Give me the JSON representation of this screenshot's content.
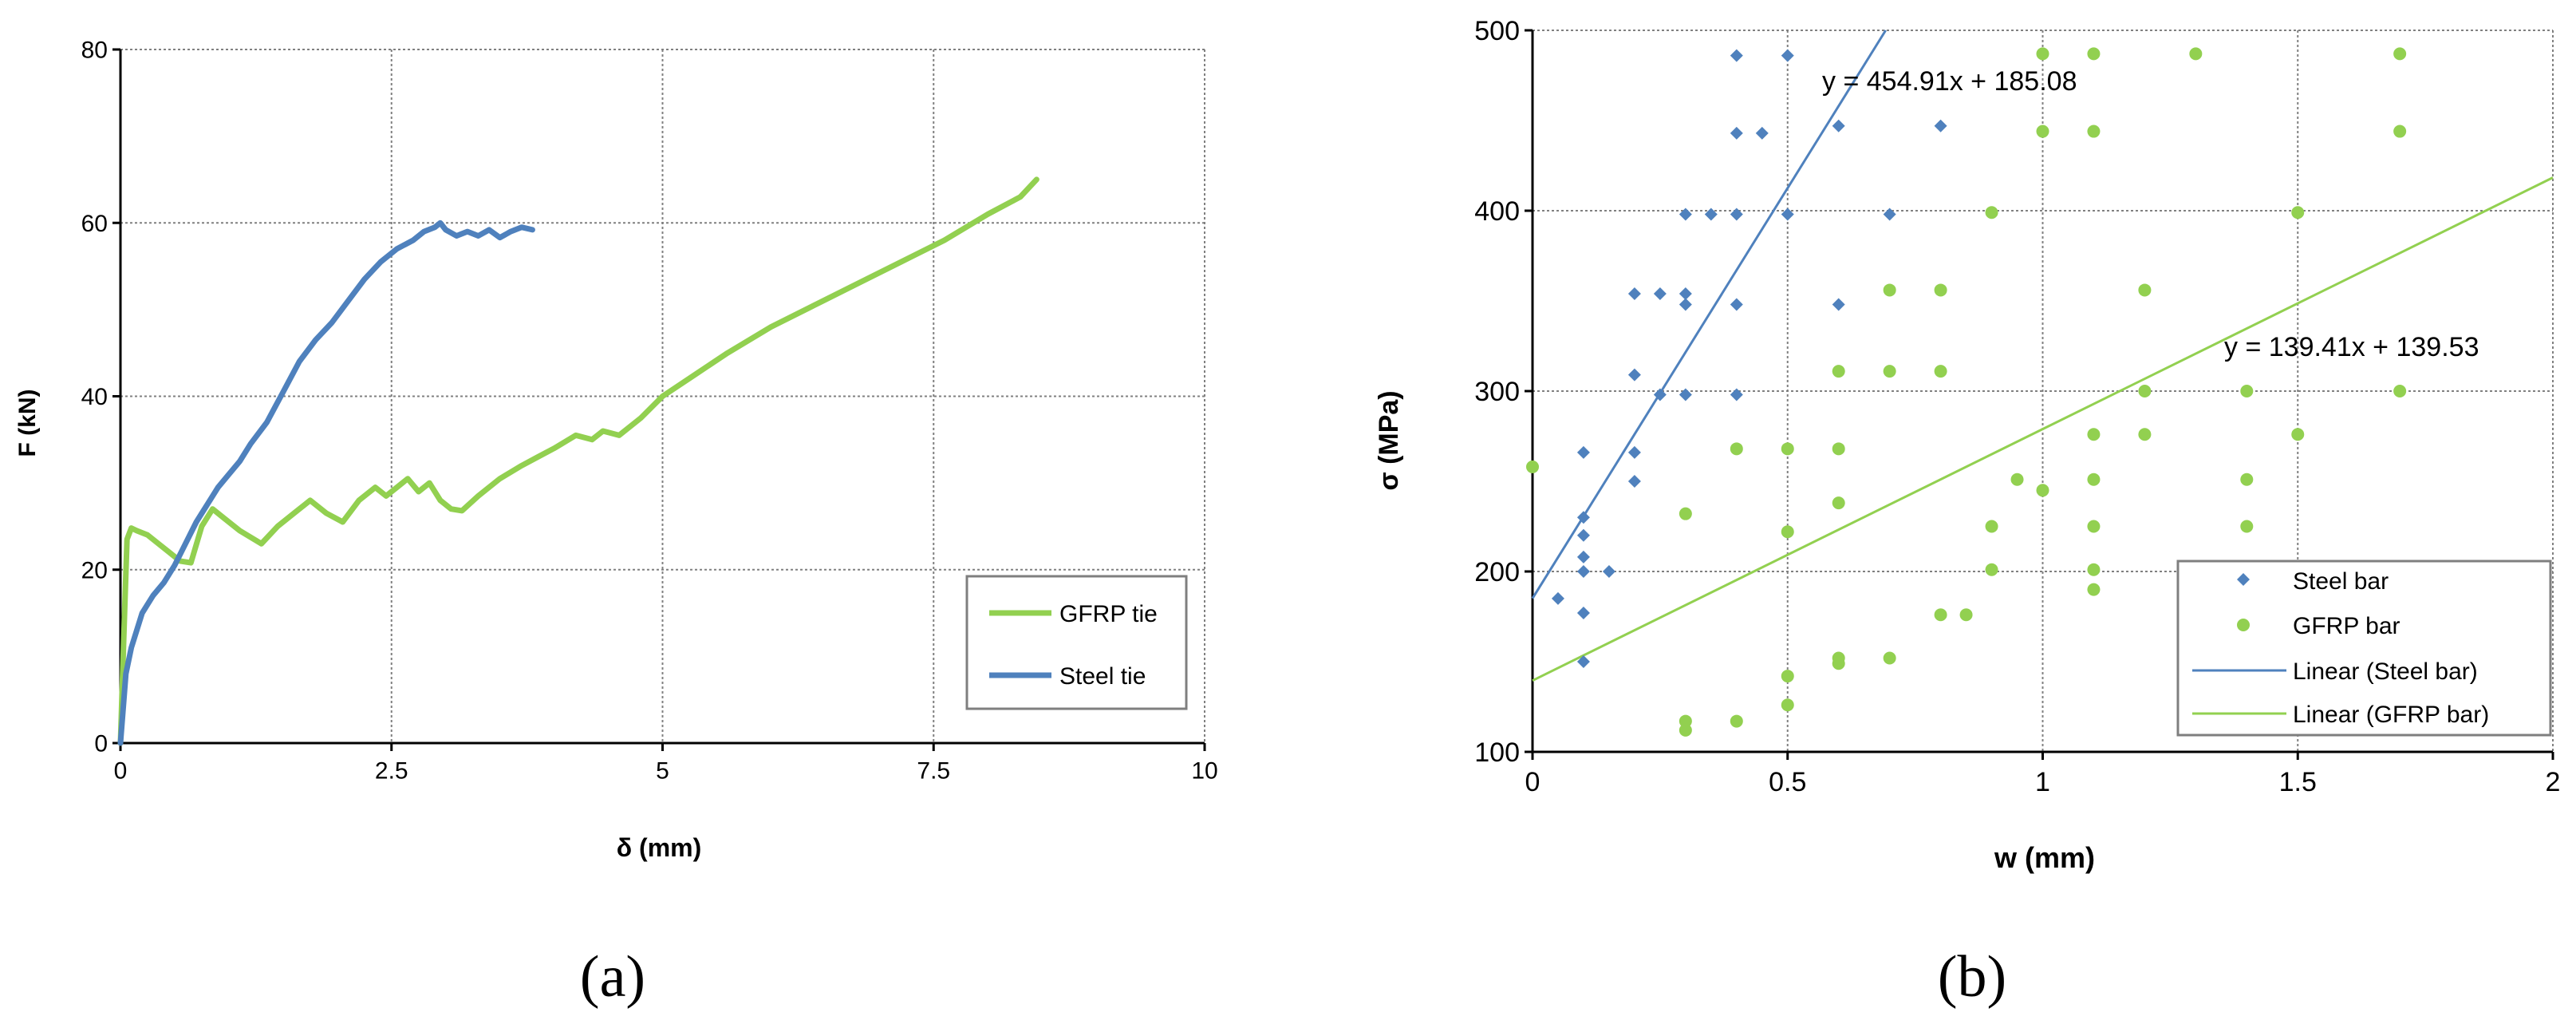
{
  "colors": {
    "steel": "#4f81bd",
    "gfrp": "#92d050",
    "grid": "#808080",
    "axis": "#000000"
  },
  "chart_data": [
    {
      "type": "line",
      "panel": "a",
      "caption": "(a)",
      "xlabel": "δ (mm)",
      "ylabel": "F (kN)",
      "xlim": [
        0,
        10
      ],
      "ylim": [
        0,
        80
      ],
      "xticks": [
        "0",
        "2.5",
        "5",
        "7.5",
        "10"
      ],
      "yticks": [
        "0",
        "20",
        "40",
        "60",
        "80"
      ],
      "grid": true,
      "legend_position": "right",
      "series": [
        {
          "name": "GFRP tie",
          "color": "#92d050",
          "x": [
            0,
            0.03,
            0.06,
            0.1,
            0.15,
            0.25,
            0.35,
            0.45,
            0.55,
            0.65,
            0.75,
            0.85,
            0.95,
            1.1,
            1.3,
            1.45,
            1.6,
            1.75,
            1.9,
            2.05,
            2.2,
            2.35,
            2.45,
            2.55,
            2.65,
            2.75,
            2.85,
            2.95,
            3.05,
            3.15,
            3.3,
            3.5,
            3.7,
            3.85,
            4.0,
            4.2,
            4.35,
            4.45,
            4.6,
            4.8,
            5.0,
            5.3,
            5.6,
            6.0,
            6.4,
            6.8,
            7.2,
            7.6,
            8.0,
            8.3,
            8.45
          ],
          "y": [
            0,
            12,
            23.5,
            24.8,
            24.5,
            24,
            23,
            22,
            21,
            20.8,
            25,
            27,
            26,
            24.5,
            23,
            25,
            26.5,
            28,
            26.5,
            25.5,
            28,
            29.5,
            28.5,
            29.5,
            30.5,
            29,
            30,
            28,
            27,
            26.8,
            28.5,
            30.5,
            32,
            33,
            34,
            35.5,
            35,
            36,
            35.5,
            37.5,
            40,
            42.5,
            45,
            48,
            50.5,
            53,
            55.5,
            58,
            61,
            63,
            65
          ]
        },
        {
          "name": "Steel tie",
          "color": "#4f81bd",
          "x": [
            0,
            0.05,
            0.1,
            0.15,
            0.2,
            0.3,
            0.4,
            0.5,
            0.6,
            0.7,
            0.8,
            0.9,
            1.0,
            1.1,
            1.2,
            1.35,
            1.5,
            1.65,
            1.8,
            1.95,
            2.1,
            2.25,
            2.4,
            2.55,
            2.7,
            2.8,
            2.9,
            2.95,
            3.0,
            3.1,
            3.2,
            3.3,
            3.4,
            3.5,
            3.6,
            3.7,
            3.8
          ],
          "y": [
            0,
            8,
            11,
            13,
            15,
            17,
            18.5,
            20.5,
            23,
            25.5,
            27.5,
            29.5,
            31,
            32.5,
            34.5,
            37,
            40.5,
            44,
            46.5,
            48.5,
            51,
            53.5,
            55.5,
            57,
            58,
            59,
            59.5,
            60,
            59.2,
            58.5,
            59,
            58.5,
            59.2,
            58.3,
            59,
            59.5,
            59.2
          ]
        }
      ]
    },
    {
      "type": "scatter",
      "panel": "b",
      "caption": "(b)",
      "xlabel": "w (mm)",
      "ylabel": "σ (MPa)",
      "xlim": [
        0,
        2
      ],
      "ylim": [
        100,
        500
      ],
      "xticks": [
        "0",
        "0.5",
        "1",
        "1.5",
        "2"
      ],
      "yticks": [
        "100",
        "200",
        "300",
        "400",
        "500"
      ],
      "grid": true,
      "legend_position": "bottom-right",
      "series": [
        {
          "name": "Steel bar",
          "color": "#4f81bd",
          "marker": "diamond",
          "points": [
            [
              0.05,
              185
            ],
            [
              0.1,
              150
            ],
            [
              0.1,
              177
            ],
            [
              0.1,
              200
            ],
            [
              0.1,
              208
            ],
            [
              0.1,
              220
            ],
            [
              0.1,
              230
            ],
            [
              0.1,
              266
            ],
            [
              0.15,
              200
            ],
            [
              0.2,
              250
            ],
            [
              0.2,
              266
            ],
            [
              0.2,
              309
            ],
            [
              0.2,
              354
            ],
            [
              0.25,
              354
            ],
            [
              0.25,
              298
            ],
            [
              0.3,
              298
            ],
            [
              0.3,
              348
            ],
            [
              0.3,
              354
            ],
            [
              0.3,
              398
            ],
            [
              0.35,
              398
            ],
            [
              0.4,
              298
            ],
            [
              0.4,
              348
            ],
            [
              0.4,
              398
            ],
            [
              0.4,
              443
            ],
            [
              0.4,
              486
            ],
            [
              0.45,
              443
            ],
            [
              0.5,
              398
            ],
            [
              0.5,
              486
            ],
            [
              0.6,
              348
            ],
            [
              0.6,
              447
            ],
            [
              0.7,
              398
            ],
            [
              0.8,
              447
            ]
          ]
        },
        {
          "name": "GFRP bar",
          "color": "#92d050",
          "marker": "circle",
          "points": [
            [
              0,
              258
            ],
            [
              0.3,
              112
            ],
            [
              0.3,
              117
            ],
            [
              0.3,
              232
            ],
            [
              0.4,
              117
            ],
            [
              0.4,
              268
            ],
            [
              0.5,
              126
            ],
            [
              0.5,
              142
            ],
            [
              0.5,
              222
            ],
            [
              0.5,
              268
            ],
            [
              0.6,
              149
            ],
            [
              0.6,
              152
            ],
            [
              0.6,
              238
            ],
            [
              0.6,
              268
            ],
            [
              0.6,
              311
            ],
            [
              0.7,
              152
            ],
            [
              0.7,
              311
            ],
            [
              0.7,
              356
            ],
            [
              0.8,
              176
            ],
            [
              0.8,
              311
            ],
            [
              0.8,
              356
            ],
            [
              0.85,
              176
            ],
            [
              0.9,
              201
            ],
            [
              0.9,
              225
            ],
            [
              0.9,
              399
            ],
            [
              0.95,
              251
            ],
            [
              1.0,
              245
            ],
            [
              1.0,
              444
            ],
            [
              1.0,
              487
            ],
            [
              1.1,
              190
            ],
            [
              1.1,
              201
            ],
            [
              1.1,
              225
            ],
            [
              1.1,
              251
            ],
            [
              1.1,
              276
            ],
            [
              1.1,
              444
            ],
            [
              1.1,
              487
            ],
            [
              1.2,
              276
            ],
            [
              1.2,
              300
            ],
            [
              1.2,
              356
            ],
            [
              1.3,
              487
            ],
            [
              1.4,
              225
            ],
            [
              1.4,
              251
            ],
            [
              1.4,
              300
            ],
            [
              1.5,
              276
            ],
            [
              1.5,
              399
            ],
            [
              1.7,
              300
            ],
            [
              1.7,
              444
            ],
            [
              1.7,
              487
            ]
          ]
        }
      ],
      "trendlines": [
        {
          "name": "Linear (Steel bar)",
          "color": "#4f81bd",
          "slope": 454.91,
          "intercept": 185.08,
          "equation": "y = 454.91x + 185.08"
        },
        {
          "name": "Linear (GFRP bar)",
          "color": "#92d050",
          "slope": 139.41,
          "intercept": 139.53,
          "equation": "y = 139.41x + 139.53"
        }
      ]
    }
  ]
}
